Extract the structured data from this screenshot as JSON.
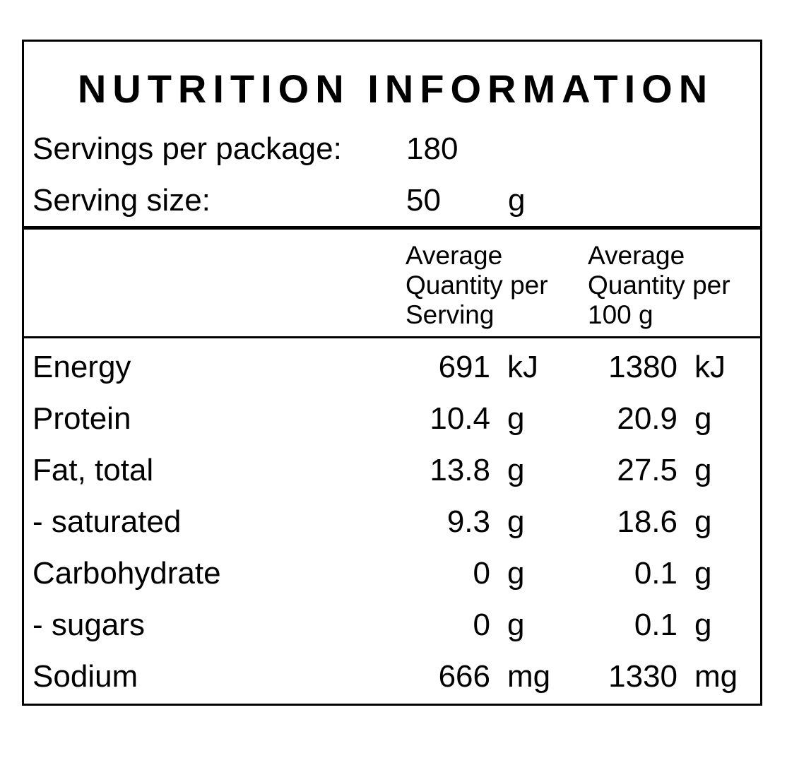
{
  "title": "NUTRITION INFORMATION",
  "servings_per_package": {
    "label": "Servings per package:",
    "value": "180"
  },
  "serving_size": {
    "label": "Serving size:",
    "value": "50",
    "unit": "g"
  },
  "columns": {
    "per_serving": "Average\nQuantity per\nServing",
    "per_100g": "Average\nQuantity per\n100 g"
  },
  "rows": [
    {
      "name": "Energy",
      "serving_value": "691",
      "serving_unit": "kJ",
      "per100_value": "1380",
      "per100_unit": "kJ"
    },
    {
      "name": "Protein",
      "serving_value": "10.4",
      "serving_unit": "g",
      "per100_value": "20.9",
      "per100_unit": "g"
    },
    {
      "name": "Fat, total",
      "serving_value": "13.8",
      "serving_unit": "g",
      "per100_value": "27.5",
      "per100_unit": "g"
    },
    {
      "name": "- saturated",
      "serving_value": "9.3",
      "serving_unit": "g",
      "per100_value": "18.6",
      "per100_unit": "g"
    },
    {
      "name": "Carbohydrate",
      "serving_value": "0",
      "serving_unit": "g",
      "per100_value": "0.1",
      "per100_unit": "g"
    },
    {
      "name": "- sugars",
      "serving_value": "0",
      "serving_unit": "g",
      "per100_value": "0.1",
      "per100_unit": "g"
    },
    {
      "name": "Sodium",
      "serving_value": "666",
      "serving_unit": "mg",
      "per100_value": "1330",
      "per100_unit": "mg"
    }
  ]
}
